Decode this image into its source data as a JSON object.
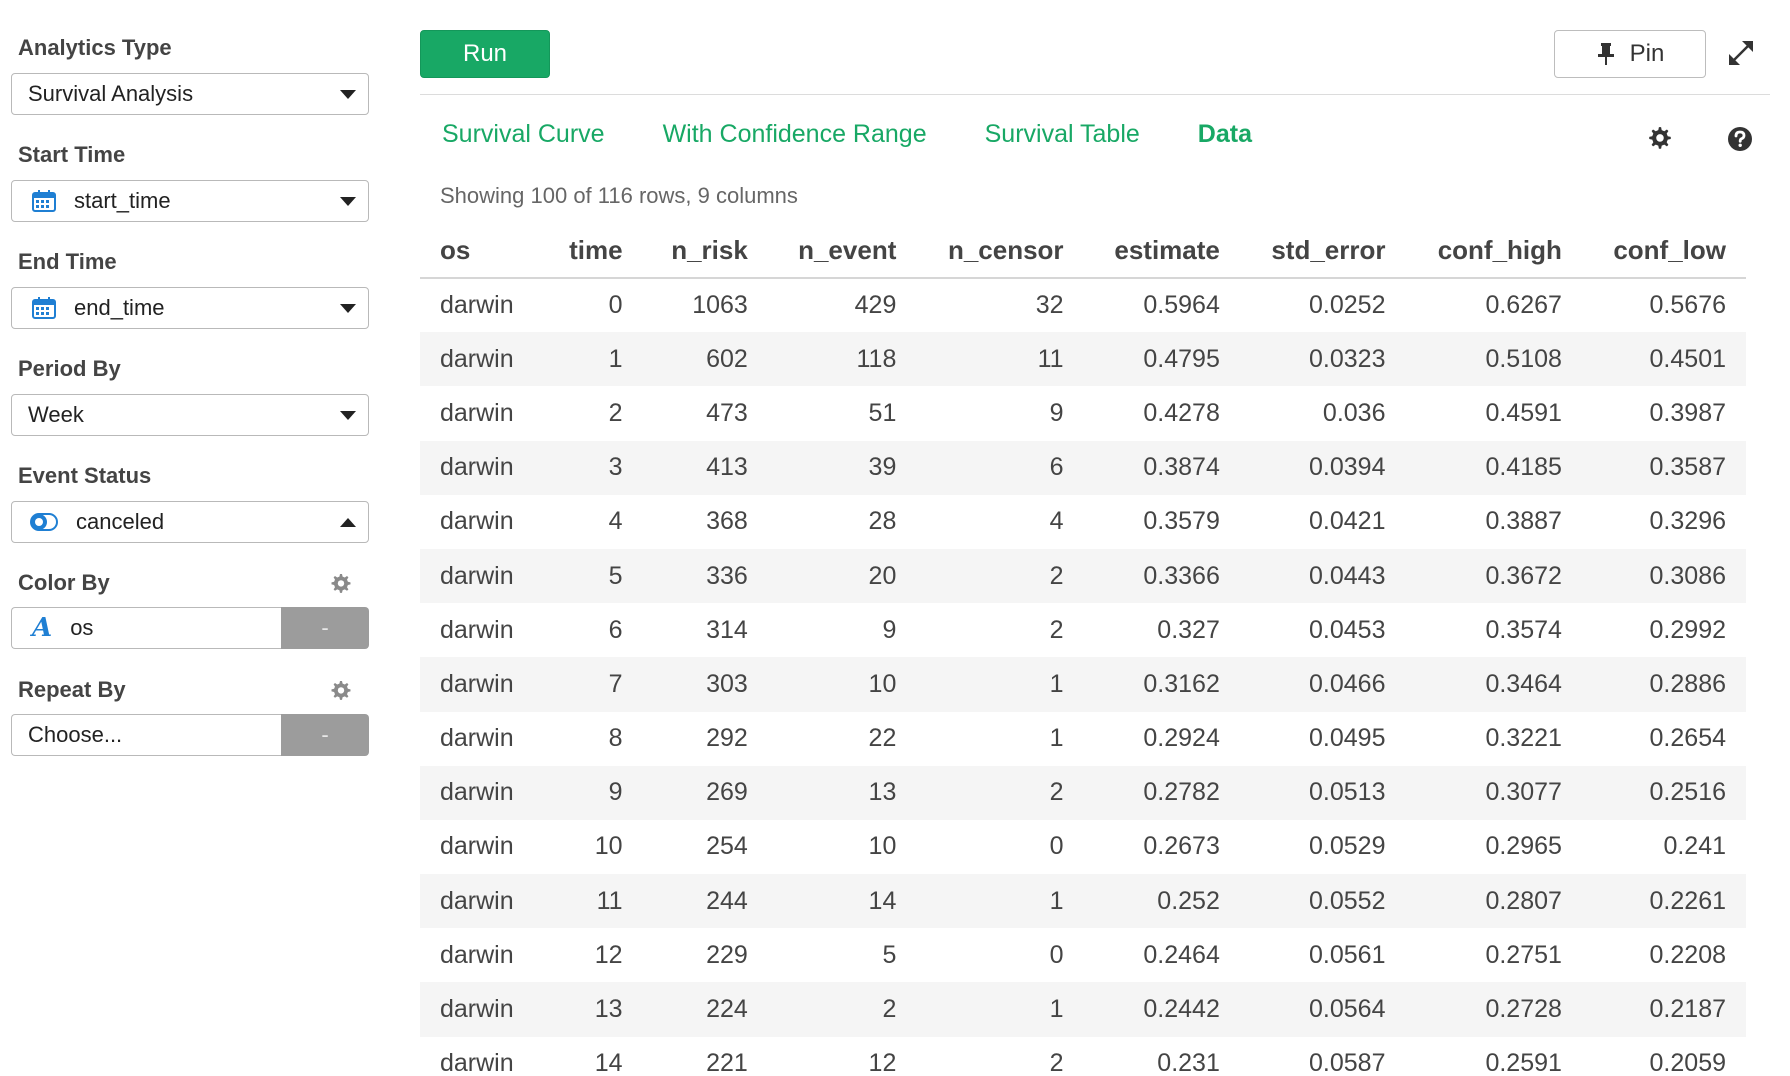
{
  "sidebar": {
    "analytics_type": {
      "label": "Analytics Type",
      "value": "Survival Analysis"
    },
    "start_time": {
      "label": "Start Time",
      "value": "start_time",
      "icon": "calendar-icon"
    },
    "end_time": {
      "label": "End Time",
      "value": "end_time",
      "icon": "calendar-icon"
    },
    "period_by": {
      "label": "Period By",
      "value": "Week"
    },
    "event_status": {
      "label": "Event Status",
      "value": "canceled",
      "icon": "toggle-icon"
    },
    "color_by": {
      "label": "Color By",
      "value": "os",
      "icon": "text-type-icon",
      "button": "-"
    },
    "repeat_by": {
      "label": "Repeat By",
      "placeholder": "Choose...",
      "button": "-"
    }
  },
  "toolbar": {
    "run_label": "Run",
    "pin_label": "Pin"
  },
  "tabs": [
    {
      "label": "Survival Curve",
      "active": false
    },
    {
      "label": "With Confidence Range",
      "active": false
    },
    {
      "label": "Survival Table",
      "active": false
    },
    {
      "label": "Data",
      "active": true
    }
  ],
  "summary": "Showing 100 of 116 rows, 9 columns",
  "colors": {
    "accent": "#18a865",
    "button_gray": "#9c9c9c",
    "icon_blue": "#1f7fd3"
  },
  "table": {
    "columns": [
      "os",
      "time",
      "n_risk",
      "n_event",
      "n_censor",
      "estimate",
      "std_error",
      "conf_high",
      "conf_low"
    ],
    "rows": [
      [
        "darwin",
        "0",
        "1063",
        "429",
        "32",
        "0.5964",
        "0.0252",
        "0.6267",
        "0.5676"
      ],
      [
        "darwin",
        "1",
        "602",
        "118",
        "11",
        "0.4795",
        "0.0323",
        "0.5108",
        "0.4501"
      ],
      [
        "darwin",
        "2",
        "473",
        "51",
        "9",
        "0.4278",
        "0.036",
        "0.4591",
        "0.3987"
      ],
      [
        "darwin",
        "3",
        "413",
        "39",
        "6",
        "0.3874",
        "0.0394",
        "0.4185",
        "0.3587"
      ],
      [
        "darwin",
        "4",
        "368",
        "28",
        "4",
        "0.3579",
        "0.0421",
        "0.3887",
        "0.3296"
      ],
      [
        "darwin",
        "5",
        "336",
        "20",
        "2",
        "0.3366",
        "0.0443",
        "0.3672",
        "0.3086"
      ],
      [
        "darwin",
        "6",
        "314",
        "9",
        "2",
        "0.327",
        "0.0453",
        "0.3574",
        "0.2992"
      ],
      [
        "darwin",
        "7",
        "303",
        "10",
        "1",
        "0.3162",
        "0.0466",
        "0.3464",
        "0.2886"
      ],
      [
        "darwin",
        "8",
        "292",
        "22",
        "1",
        "0.2924",
        "0.0495",
        "0.3221",
        "0.2654"
      ],
      [
        "darwin",
        "9",
        "269",
        "13",
        "2",
        "0.2782",
        "0.0513",
        "0.3077",
        "0.2516"
      ],
      [
        "darwin",
        "10",
        "254",
        "10",
        "0",
        "0.2673",
        "0.0529",
        "0.2965",
        "0.241"
      ],
      [
        "darwin",
        "11",
        "244",
        "14",
        "1",
        "0.252",
        "0.0552",
        "0.2807",
        "0.2261"
      ],
      [
        "darwin",
        "12",
        "229",
        "5",
        "0",
        "0.2464",
        "0.0561",
        "0.2751",
        "0.2208"
      ],
      [
        "darwin",
        "13",
        "224",
        "2",
        "1",
        "0.2442",
        "0.0564",
        "0.2728",
        "0.2187"
      ],
      [
        "darwin",
        "14",
        "221",
        "12",
        "2",
        "0.231",
        "0.0587",
        "0.2591",
        "0.2059"
      ]
    ]
  }
}
